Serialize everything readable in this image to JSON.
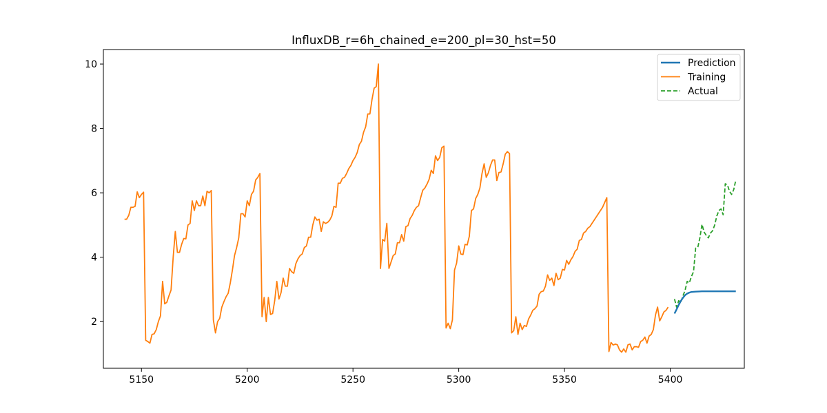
{
  "chart_data": {
    "type": "line",
    "title": "InfluxDB_r=6h_chained_e=200_pl=30_hst=50",
    "xlabel": "",
    "ylabel": "",
    "xlim": [
      5132,
      5435
    ],
    "ylim": [
      0.55,
      10.45
    ],
    "xticks": [
      5150,
      5200,
      5250,
      5300,
      5350,
      5400
    ],
    "yticks": [
      2,
      4,
      6,
      8,
      10
    ],
    "grid": false,
    "legend_position": "top-right",
    "series": [
      {
        "name": "Prediction",
        "color": "#1f77b4",
        "style": "solid",
        "points": [
          [
            5402,
            2.25
          ],
          [
            5403,
            2.38
          ],
          [
            5404,
            2.52
          ],
          [
            5405,
            2.64
          ],
          [
            5406,
            2.74
          ],
          [
            5407,
            2.82
          ],
          [
            5408,
            2.87
          ],
          [
            5409,
            2.9
          ],
          [
            5410,
            2.92
          ],
          [
            5412,
            2.93
          ],
          [
            5415,
            2.94
          ],
          [
            5420,
            2.94
          ],
          [
            5425,
            2.94
          ],
          [
            5431,
            2.94
          ]
        ]
      },
      {
        "name": "Training",
        "color": "#ff7f0e",
        "style": "solid",
        "points": [
          [
            5142,
            5.18
          ],
          [
            5143,
            5.18
          ],
          [
            5144,
            5.3
          ],
          [
            5145,
            5.55
          ],
          [
            5146,
            5.55
          ],
          [
            5147,
            5.58
          ],
          [
            5148,
            6.03
          ],
          [
            5149,
            5.85
          ],
          [
            5150,
            5.95
          ],
          [
            5151,
            6.02
          ],
          [
            5152,
            1.42
          ],
          [
            5153,
            1.38
          ],
          [
            5154,
            1.33
          ],
          [
            5155,
            1.6
          ],
          [
            5156,
            1.62
          ],
          [
            5157,
            1.75
          ],
          [
            5158,
            2.0
          ],
          [
            5159,
            2.18
          ],
          [
            5160,
            3.25
          ],
          [
            5161,
            2.55
          ],
          [
            5162,
            2.6
          ],
          [
            5163,
            2.8
          ],
          [
            5164,
            2.98
          ],
          [
            5165,
            4.0
          ],
          [
            5166,
            4.8
          ],
          [
            5167,
            4.15
          ],
          [
            5168,
            4.15
          ],
          [
            5169,
            4.4
          ],
          [
            5170,
            4.58
          ],
          [
            5171,
            4.57
          ],
          [
            5172,
            5.0
          ],
          [
            5173,
            5.05
          ],
          [
            5174,
            5.75
          ],
          [
            5175,
            5.45
          ],
          [
            5176,
            5.75
          ],
          [
            5177,
            5.6
          ],
          [
            5178,
            5.6
          ],
          [
            5179,
            5.9
          ],
          [
            5180,
            5.6
          ],
          [
            5181,
            6.05
          ],
          [
            5182,
            6.0
          ],
          [
            5183,
            6.07
          ],
          [
            5184,
            2.05
          ],
          [
            5185,
            1.65
          ],
          [
            5186,
            2.0
          ],
          [
            5187,
            2.1
          ],
          [
            5188,
            2.45
          ],
          [
            5189,
            2.62
          ],
          [
            5190,
            2.77
          ],
          [
            5191,
            2.88
          ],
          [
            5192,
            3.2
          ],
          [
            5193,
            3.6
          ],
          [
            5194,
            4.05
          ],
          [
            5195,
            4.3
          ],
          [
            5196,
            4.6
          ],
          [
            5197,
            5.35
          ],
          [
            5198,
            5.35
          ],
          [
            5199,
            5.25
          ],
          [
            5200,
            5.75
          ],
          [
            5201,
            5.6
          ],
          [
            5202,
            5.95
          ],
          [
            5203,
            6.05
          ],
          [
            5204,
            6.4
          ],
          [
            5205,
            6.48
          ],
          [
            5206,
            6.6
          ],
          [
            5207,
            2.15
          ],
          [
            5208,
            2.75
          ],
          [
            5209,
            2.0
          ],
          [
            5210,
            2.75
          ],
          [
            5211,
            2.22
          ],
          [
            5212,
            2.25
          ],
          [
            5213,
            2.65
          ],
          [
            5214,
            3.25
          ],
          [
            5215,
            2.7
          ],
          [
            5216,
            2.9
          ],
          [
            5217,
            3.35
          ],
          [
            5218,
            3.1
          ],
          [
            5219,
            3.1
          ],
          [
            5220,
            3.65
          ],
          [
            5221,
            3.55
          ],
          [
            5222,
            3.5
          ],
          [
            5223,
            3.8
          ],
          [
            5224,
            3.95
          ],
          [
            5225,
            4.05
          ],
          [
            5226,
            4.1
          ],
          [
            5227,
            4.3
          ],
          [
            5228,
            4.35
          ],
          [
            5229,
            4.62
          ],
          [
            5230,
            4.62
          ],
          [
            5231,
            5.0
          ],
          [
            5232,
            5.25
          ],
          [
            5233,
            5.15
          ],
          [
            5234,
            5.18
          ],
          [
            5235,
            4.8
          ],
          [
            5236,
            5.1
          ],
          [
            5237,
            5.05
          ],
          [
            5238,
            5.08
          ],
          [
            5239,
            5.15
          ],
          [
            5240,
            5.28
          ],
          [
            5241,
            5.58
          ],
          [
            5242,
            5.55
          ],
          [
            5243,
            6.3
          ],
          [
            5244,
            6.3
          ],
          [
            5245,
            6.45
          ],
          [
            5246,
            6.48
          ],
          [
            5247,
            6.6
          ],
          [
            5248,
            6.75
          ],
          [
            5249,
            6.85
          ],
          [
            5250,
            7.0
          ],
          [
            5251,
            7.1
          ],
          [
            5252,
            7.25
          ],
          [
            5253,
            7.5
          ],
          [
            5254,
            7.6
          ],
          [
            5255,
            7.88
          ],
          [
            5256,
            8.05
          ],
          [
            5257,
            8.45
          ],
          [
            5258,
            8.45
          ],
          [
            5259,
            8.9
          ],
          [
            5260,
            9.25
          ],
          [
            5261,
            9.3
          ],
          [
            5262,
            10.0
          ],
          [
            5263,
            3.65
          ],
          [
            5264,
            4.55
          ],
          [
            5265,
            4.5
          ],
          [
            5266,
            5.05
          ],
          [
            5267,
            3.65
          ],
          [
            5268,
            3.85
          ],
          [
            5269,
            4.05
          ],
          [
            5270,
            4.1
          ],
          [
            5271,
            4.45
          ],
          [
            5272,
            4.45
          ],
          [
            5273,
            4.7
          ],
          [
            5274,
            4.5
          ],
          [
            5275,
            4.95
          ],
          [
            5276,
            4.98
          ],
          [
            5277,
            5.2
          ],
          [
            5278,
            5.3
          ],
          [
            5279,
            5.45
          ],
          [
            5280,
            5.55
          ],
          [
            5281,
            5.6
          ],
          [
            5282,
            5.85
          ],
          [
            5283,
            6.08
          ],
          [
            5284,
            6.15
          ],
          [
            5285,
            6.27
          ],
          [
            5286,
            6.42
          ],
          [
            5287,
            6.7
          ],
          [
            5288,
            6.6
          ],
          [
            5289,
            7.15
          ],
          [
            5290,
            7.0
          ],
          [
            5291,
            7.1
          ],
          [
            5292,
            7.4
          ],
          [
            5293,
            7.45
          ],
          [
            5294,
            1.8
          ],
          [
            5295,
            1.95
          ],
          [
            5296,
            1.78
          ],
          [
            5297,
            2.05
          ],
          [
            5298,
            3.6
          ],
          [
            5299,
            3.82
          ],
          [
            5300,
            4.35
          ],
          [
            5301,
            4.1
          ],
          [
            5302,
            4.08
          ],
          [
            5303,
            4.4
          ],
          [
            5304,
            4.38
          ],
          [
            5305,
            4.65
          ],
          [
            5306,
            5.45
          ],
          [
            5307,
            5.5
          ],
          [
            5308,
            5.82
          ],
          [
            5309,
            5.95
          ],
          [
            5310,
            6.15
          ],
          [
            5311,
            6.6
          ],
          [
            5312,
            6.9
          ],
          [
            5313,
            6.48
          ],
          [
            5314,
            6.62
          ],
          [
            5315,
            6.85
          ],
          [
            5316,
            7.02
          ],
          [
            5317,
            7.02
          ],
          [
            5318,
            6.38
          ],
          [
            5319,
            6.63
          ],
          [
            5320,
            6.65
          ],
          [
            5321,
            6.9
          ],
          [
            5322,
            7.2
          ],
          [
            5323,
            7.28
          ],
          [
            5324,
            7.22
          ],
          [
            5325,
            1.65
          ],
          [
            5326,
            1.72
          ],
          [
            5327,
            2.15
          ],
          [
            5328,
            1.6
          ],
          [
            5329,
            1.95
          ],
          [
            5330,
            1.75
          ],
          [
            5331,
            1.88
          ],
          [
            5332,
            1.85
          ],
          [
            5333,
            2.08
          ],
          [
            5334,
            2.2
          ],
          [
            5335,
            2.35
          ],
          [
            5336,
            2.4
          ],
          [
            5337,
            2.48
          ],
          [
            5338,
            2.85
          ],
          [
            5339,
            2.93
          ],
          [
            5340,
            2.95
          ],
          [
            5341,
            3.1
          ],
          [
            5342,
            3.45
          ],
          [
            5343,
            3.28
          ],
          [
            5344,
            3.35
          ],
          [
            5345,
            3.12
          ],
          [
            5346,
            3.5
          ],
          [
            5347,
            3.3
          ],
          [
            5348,
            3.35
          ],
          [
            5349,
            3.62
          ],
          [
            5350,
            3.6
          ],
          [
            5351,
            3.9
          ],
          [
            5352,
            3.78
          ],
          [
            5353,
            3.92
          ],
          [
            5354,
            4.02
          ],
          [
            5355,
            4.18
          ],
          [
            5356,
            4.25
          ],
          [
            5357,
            4.52
          ],
          [
            5358,
            4.55
          ],
          [
            5359,
            4.75
          ],
          [
            5360,
            4.8
          ],
          [
            5361,
            4.9
          ],
          [
            5362,
            4.95
          ],
          [
            5363,
            5.05
          ],
          [
            5364,
            5.15
          ],
          [
            5365,
            5.25
          ],
          [
            5366,
            5.35
          ],
          [
            5367,
            5.45
          ],
          [
            5368,
            5.55
          ],
          [
            5369,
            5.7
          ],
          [
            5370,
            5.85
          ],
          [
            5371,
            1.07
          ],
          [
            5372,
            1.35
          ],
          [
            5373,
            1.27
          ],
          [
            5374,
            1.3
          ],
          [
            5375,
            1.28
          ],
          [
            5376,
            1.12
          ],
          [
            5377,
            1.05
          ],
          [
            5378,
            1.15
          ],
          [
            5379,
            1.05
          ],
          [
            5380,
            1.28
          ],
          [
            5381,
            1.3
          ],
          [
            5382,
            1.12
          ],
          [
            5383,
            1.22
          ],
          [
            5384,
            1.22
          ],
          [
            5385,
            1.2
          ],
          [
            5386,
            1.38
          ],
          [
            5387,
            1.42
          ],
          [
            5388,
            1.52
          ],
          [
            5389,
            1.33
          ],
          [
            5390,
            1.55
          ],
          [
            5391,
            1.6
          ],
          [
            5392,
            1.75
          ],
          [
            5393,
            2.2
          ],
          [
            5394,
            2.45
          ],
          [
            5395,
            2.02
          ],
          [
            5396,
            2.15
          ],
          [
            5397,
            2.3
          ],
          [
            5398,
            2.35
          ],
          [
            5399,
            2.45
          ]
        ]
      },
      {
        "name": "Actual",
        "color": "#2ca02c",
        "style": "dashed",
        "points": [
          [
            5402,
            2.7
          ],
          [
            5403,
            2.45
          ],
          [
            5404,
            2.65
          ],
          [
            5405,
            2.6
          ],
          [
            5406,
            2.8
          ],
          [
            5407,
            2.97
          ],
          [
            5408,
            3.25
          ],
          [
            5409,
            3.2
          ],
          [
            5410,
            3.4
          ],
          [
            5411,
            3.55
          ],
          [
            5412,
            4.28
          ],
          [
            5413,
            4.3
          ],
          [
            5414,
            4.6
          ],
          [
            5415,
            5.02
          ],
          [
            5416,
            4.78
          ],
          [
            5417,
            4.68
          ],
          [
            5418,
            4.6
          ],
          [
            5419,
            4.75
          ],
          [
            5420,
            4.82
          ],
          [
            5421,
            5.0
          ],
          [
            5422,
            5.28
          ],
          [
            5423,
            5.45
          ],
          [
            5424,
            5.5
          ],
          [
            5425,
            5.32
          ],
          [
            5426,
            6.28
          ],
          [
            5427,
            6.25
          ],
          [
            5428,
            6.05
          ],
          [
            5429,
            5.95
          ],
          [
            5430,
            6.1
          ],
          [
            5431,
            6.4
          ]
        ]
      }
    ]
  }
}
